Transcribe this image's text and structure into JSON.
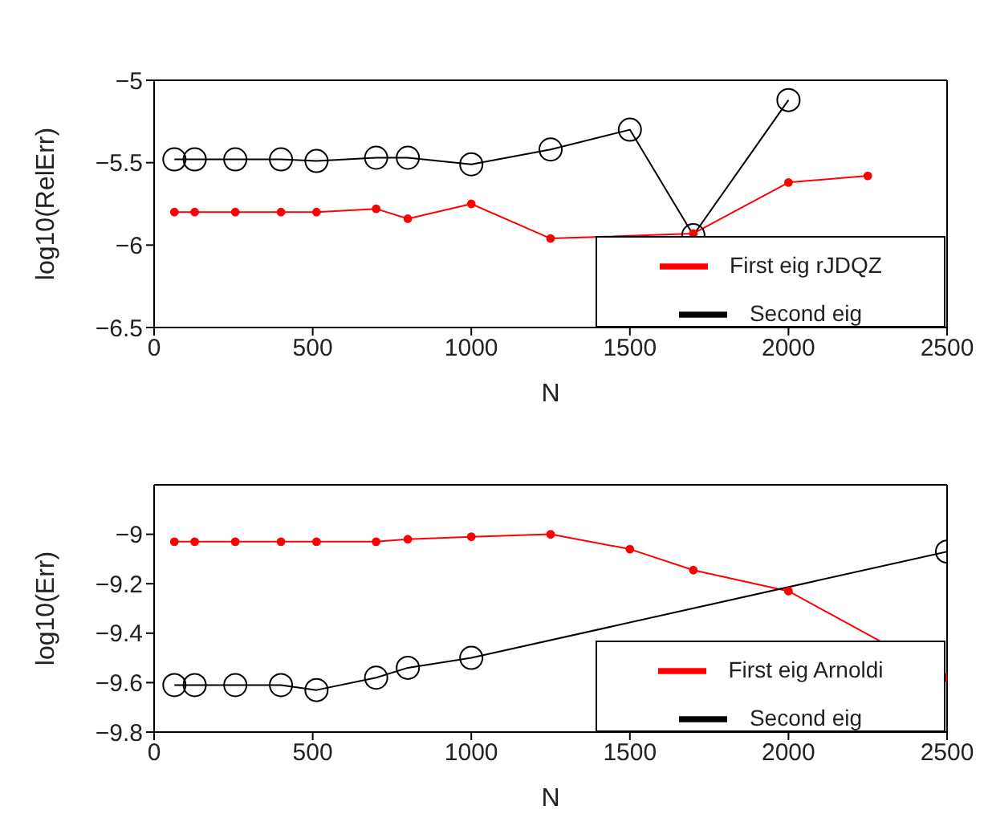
{
  "chart_data": [
    {
      "type": "line",
      "xlabel": "N",
      "ylabel": "log10(RelErr)",
      "xlim": [
        0,
        2500
      ],
      "xticks": [
        0,
        500,
        1000,
        1500,
        2000,
        2500
      ],
      "ylim": [
        -6.5,
        -5
      ],
      "yticks": [
        -6.5,
        -6,
        -5.5,
        -5
      ],
      "grid": false,
      "legend": "bottom right",
      "series": [
        {
          "name": "First eig rJDQZ",
          "color": "#ff0000",
          "marker": "circle",
          "x": [
            64,
            128,
            256,
            400,
            512,
            700,
            800,
            1000,
            1250,
            1500,
            1700,
            2000,
            2250
          ],
          "values": [
            -5.8,
            -5.8,
            -5.8,
            -5.8,
            -5.8,
            -5.78,
            -5.84,
            -5.75,
            -5.96,
            null,
            -5.93,
            -5.62,
            -5.58
          ]
        },
        {
          "name": "Second eig",
          "color": "#000000",
          "marker": "circle",
          "x": [
            64,
            128,
            256,
            400,
            512,
            700,
            800,
            1000,
            1250,
            1500,
            1700,
            2000
          ],
          "values": [
            -5.48,
            -5.48,
            -5.48,
            -5.48,
            -5.49,
            -5.47,
            -5.47,
            -5.51,
            -5.42,
            -5.3,
            -5.94,
            -5.12
          ]
        }
      ]
    },
    {
      "type": "line",
      "xlabel": "N",
      "ylabel": "log10(Err)",
      "xlim": [
        0,
        2500
      ],
      "xticks": [
        0,
        500,
        1000,
        1500,
        2000,
        2500
      ],
      "ylim": [
        -9.8,
        -8.8
      ],
      "yticks": [
        -9.8,
        -9.6,
        -9.4,
        -9.2,
        -9
      ],
      "grid": false,
      "legend": "bottom right",
      "series": [
        {
          "name": "First eig Arnoldi",
          "color": "#ff0000",
          "marker": "circle",
          "x": [
            64,
            128,
            256,
            400,
            512,
            700,
            800,
            1000,
            1250,
            1500,
            1700,
            2000,
            2500
          ],
          "values": [
            -9.03,
            -9.03,
            -9.03,
            -9.03,
            -9.03,
            -9.03,
            -9.02,
            -9.01,
            -9.0,
            -9.06,
            -9.145,
            -9.23,
            -9.58
          ]
        },
        {
          "name": "Second eig",
          "color": "#000000",
          "marker": "circle",
          "x": [
            64,
            128,
            256,
            400,
            512,
            700,
            800,
            1000,
            1250,
            1500,
            1700,
            2000,
            2500
          ],
          "values": [
            -9.61,
            -9.61,
            -9.61,
            -9.61,
            -9.63,
            -9.58,
            -9.54,
            -9.5,
            null,
            null,
            null,
            null,
            -9.07
          ]
        }
      ]
    }
  ]
}
